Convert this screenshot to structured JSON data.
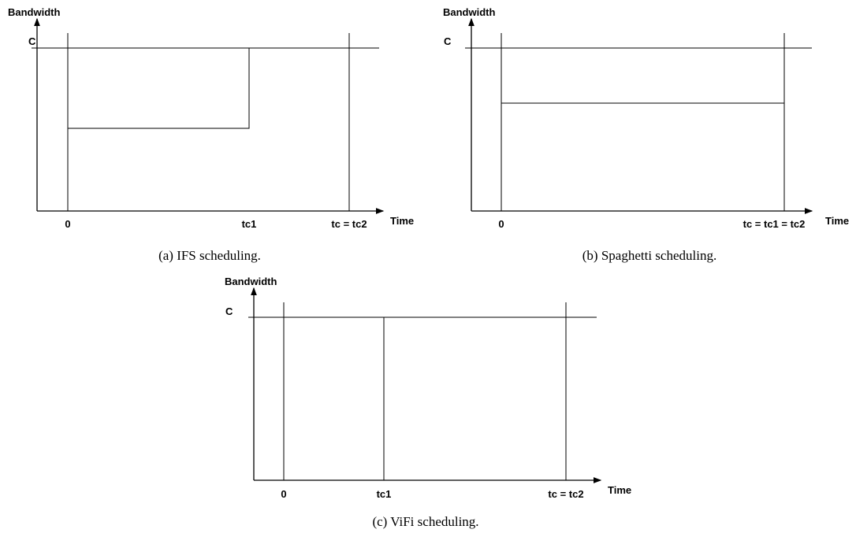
{
  "panels": [
    {
      "y_axis_label": "Bandwidth",
      "capacity_label": "C",
      "x_labels": [
        "0",
        "tc1",
        "tc = tc2"
      ],
      "x_axis_label": "Time",
      "caption": "(a)  IFS scheduling."
    },
    {
      "y_axis_label": "Bandwidth",
      "capacity_label": "C",
      "x_labels": [
        "0",
        "tc = tc1 = tc2"
      ],
      "x_axis_label": "Time",
      "caption": "(b)  Spaghetti scheduling."
    },
    {
      "y_axis_label": "Bandwidth",
      "capacity_label": "C",
      "x_labels": [
        "0",
        "tc1",
        "tc = tc2"
      ],
      "x_axis_label": "Time",
      "caption": "(c)  ViFi scheduling."
    }
  ]
}
